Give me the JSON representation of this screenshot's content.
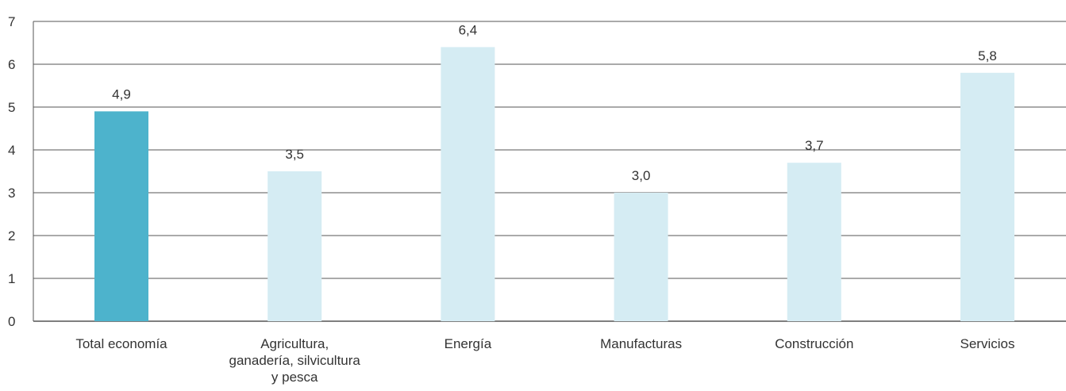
{
  "chart_data": {
    "type": "bar",
    "categories": [
      [
        "Total economía"
      ],
      [
        "Agricultura,",
        "ganadería, silvicultura",
        "y pesca"
      ],
      [
        "Energía"
      ],
      [
        "Manufacturas"
      ],
      [
        "Construcción"
      ],
      [
        "Servicios"
      ]
    ],
    "values": [
      4.9,
      3.5,
      6.4,
      3.0,
      3.7,
      5.8
    ],
    "value_labels": [
      "4,9",
      "3,5",
      "6,4",
      "3,0",
      "3,7",
      "5,8"
    ],
    "highlight_index": 0,
    "ylim": [
      0,
      7
    ],
    "yticks": [
      "0",
      "1",
      "2",
      "3",
      "4",
      "5",
      "6",
      "7"
    ],
    "grid": true,
    "title": "",
    "xlabel": "",
    "ylabel": "",
    "colors": {
      "highlight": "#4db3cc",
      "bar": "#d5ecf3",
      "grid": "#555555"
    }
  }
}
